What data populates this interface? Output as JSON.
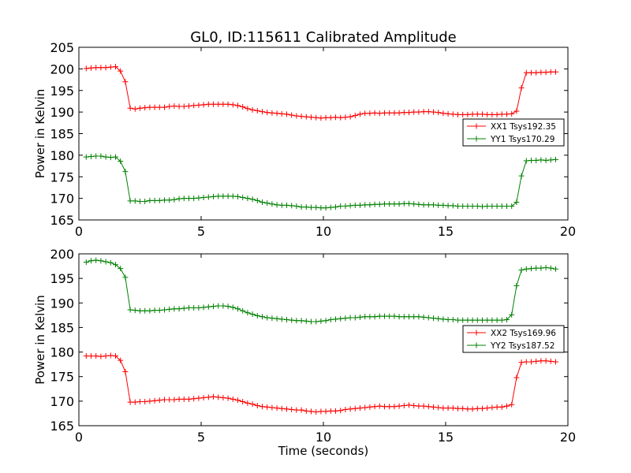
{
  "figure": {
    "title": "GL0, ID:115611 Calibrated Amplitude"
  },
  "chart_data": [
    {
      "type": "line",
      "title": "GL0, ID:115611 Calibrated Amplitude",
      "xlabel": "",
      "ylabel": "Power in Kelvin",
      "xlim": [
        0,
        20
      ],
      "ylim": [
        165,
        205
      ],
      "xticks": [
        "0",
        "5",
        "10",
        "15",
        "20"
      ],
      "yticks": [
        "165",
        "170",
        "175",
        "180",
        "185",
        "190",
        "195",
        "200",
        "205"
      ],
      "grid": false,
      "legend": "center-right",
      "x": [
        0.3,
        0.5,
        0.7,
        0.9,
        1.1,
        1.3,
        1.5,
        1.7,
        1.9,
        2.1,
        2.3,
        2.5,
        2.7,
        2.9,
        3.1,
        3.3,
        3.5,
        3.7,
        3.9,
        4.1,
        4.3,
        4.5,
        4.7,
        4.9,
        5.1,
        5.3,
        5.5,
        5.7,
        5.9,
        6.1,
        6.3,
        6.5,
        6.7,
        6.9,
        7.1,
        7.3,
        7.5,
        7.7,
        7.9,
        8.1,
        8.3,
        8.5,
        8.7,
        8.9,
        9.1,
        9.3,
        9.5,
        9.7,
        9.9,
        10.1,
        10.3,
        10.5,
        10.7,
        10.9,
        11.1,
        11.3,
        11.5,
        11.7,
        11.9,
        12.1,
        12.3,
        12.5,
        12.7,
        12.9,
        13.1,
        13.3,
        13.5,
        13.7,
        13.9,
        14.1,
        14.3,
        14.5,
        14.7,
        14.9,
        15.1,
        15.3,
        15.5,
        15.7,
        15.9,
        16.1,
        16.3,
        16.5,
        16.7,
        16.9,
        17.1,
        17.3,
        17.5,
        17.7,
        17.9,
        18.1,
        18.3,
        18.5,
        18.7,
        18.9,
        19.1,
        19.3,
        19.5
      ],
      "series": [
        {
          "name": "XX1 Tsys192.35",
          "color": "#ff0000",
          "values": [
            200.1,
            200.2,
            200.3,
            200.3,
            200.3,
            200.4,
            200.5,
            199.5,
            197.0,
            190.9,
            190.7,
            190.9,
            191.0,
            191.1,
            191.1,
            191.1,
            191.1,
            191.3,
            191.4,
            191.3,
            191.3,
            191.4,
            191.5,
            191.6,
            191.7,
            191.8,
            191.8,
            191.8,
            191.8,
            191.8,
            191.7,
            191.5,
            191.2,
            190.8,
            190.5,
            190.3,
            190.1,
            189.9,
            189.8,
            189.7,
            189.6,
            189.5,
            189.3,
            189.1,
            189.0,
            188.9,
            188.8,
            188.7,
            188.6,
            188.7,
            188.7,
            188.8,
            188.7,
            188.8,
            188.9,
            189.2,
            189.5,
            189.7,
            189.7,
            189.8,
            189.7,
            189.8,
            189.8,
            189.8,
            189.8,
            189.9,
            189.9,
            190.0,
            190.0,
            190.1,
            190.1,
            190.0,
            189.9,
            189.7,
            189.6,
            189.5,
            189.4,
            189.4,
            189.4,
            189.5,
            189.5,
            189.5,
            189.4,
            189.4,
            189.4,
            189.5,
            189.5,
            189.6,
            190.2,
            195.6,
            199.1,
            199.1,
            199.1,
            199.2,
            199.2,
            199.3,
            199.3
          ]
        },
        {
          "name": "YY1 Tsys170.29",
          "color": "#008000",
          "values": [
            179.6,
            179.7,
            179.8,
            179.8,
            179.6,
            179.5,
            179.6,
            178.6,
            176.2,
            169.4,
            169.4,
            169.3,
            169.3,
            169.5,
            169.5,
            169.5,
            169.6,
            169.6,
            169.7,
            169.9,
            170.0,
            170.0,
            170.0,
            170.1,
            170.2,
            170.3,
            170.4,
            170.5,
            170.5,
            170.5,
            170.5,
            170.4,
            170.2,
            170.0,
            169.8,
            169.5,
            169.1,
            168.9,
            168.7,
            168.5,
            168.4,
            168.4,
            168.3,
            168.2,
            168.0,
            168.0,
            167.9,
            167.9,
            167.8,
            167.8,
            167.9,
            168.0,
            168.2,
            168.2,
            168.3,
            168.4,
            168.4,
            168.5,
            168.5,
            168.6,
            168.6,
            168.7,
            168.7,
            168.7,
            168.7,
            168.8,
            168.8,
            168.7,
            168.6,
            168.5,
            168.5,
            168.5,
            168.4,
            168.4,
            168.3,
            168.3,
            168.2,
            168.2,
            168.2,
            168.2,
            168.2,
            168.1,
            168.2,
            168.2,
            168.2,
            168.2,
            168.2,
            168.2,
            169.1,
            175.2,
            178.7,
            178.8,
            178.8,
            178.9,
            178.8,
            178.9,
            179.0
          ]
        }
      ]
    },
    {
      "type": "line",
      "title": "",
      "xlabel": "Time (seconds)",
      "ylabel": "Power in Kelvin",
      "xlim": [
        0,
        20
      ],
      "ylim": [
        165,
        200
      ],
      "xticks": [
        "0",
        "5",
        "10",
        "15",
        "20"
      ],
      "yticks": [
        "165",
        "170",
        "175",
        "180",
        "185",
        "190",
        "195",
        "200"
      ],
      "grid": false,
      "legend": "center-right",
      "x": [
        0.3,
        0.5,
        0.7,
        0.9,
        1.1,
        1.3,
        1.5,
        1.7,
        1.9,
        2.1,
        2.3,
        2.5,
        2.7,
        2.9,
        3.1,
        3.3,
        3.5,
        3.7,
        3.9,
        4.1,
        4.3,
        4.5,
        4.7,
        4.9,
        5.1,
        5.3,
        5.5,
        5.7,
        5.9,
        6.1,
        6.3,
        6.5,
        6.7,
        6.9,
        7.1,
        7.3,
        7.5,
        7.7,
        7.9,
        8.1,
        8.3,
        8.5,
        8.7,
        8.9,
        9.1,
        9.3,
        9.5,
        9.7,
        9.9,
        10.1,
        10.3,
        10.5,
        10.7,
        10.9,
        11.1,
        11.3,
        11.5,
        11.7,
        11.9,
        12.1,
        12.3,
        12.5,
        12.7,
        12.9,
        13.1,
        13.3,
        13.5,
        13.7,
        13.9,
        14.1,
        14.3,
        14.5,
        14.7,
        14.9,
        15.1,
        15.3,
        15.5,
        15.7,
        15.9,
        16.1,
        16.3,
        16.5,
        16.7,
        16.9,
        17.1,
        17.3,
        17.5,
        17.7,
        17.9,
        18.1,
        18.3,
        18.5,
        18.7,
        18.9,
        19.1,
        19.3,
        19.5
      ],
      "series": [
        {
          "name": "XX2 Tsys169.96",
          "color": "#ff0000",
          "values": [
            179.2,
            179.2,
            179.2,
            179.1,
            179.2,
            179.3,
            179.2,
            178.3,
            176.0,
            169.8,
            169.8,
            169.9,
            169.9,
            170.0,
            170.1,
            170.2,
            170.3,
            170.3,
            170.3,
            170.4,
            170.4,
            170.4,
            170.5,
            170.6,
            170.7,
            170.8,
            170.9,
            170.8,
            170.7,
            170.6,
            170.4,
            170.2,
            169.9,
            169.6,
            169.4,
            169.1,
            168.9,
            168.8,
            168.7,
            168.6,
            168.5,
            168.4,
            168.3,
            168.2,
            168.2,
            168.0,
            167.9,
            167.8,
            167.9,
            167.9,
            168.0,
            168.0,
            168.1,
            168.3,
            168.4,
            168.5,
            168.6,
            168.7,
            168.8,
            168.9,
            169.0,
            168.9,
            168.9,
            168.9,
            169.0,
            169.1,
            169.2,
            169.1,
            169.0,
            169.0,
            168.9,
            168.8,
            168.7,
            168.6,
            168.6,
            168.6,
            168.5,
            168.5,
            168.4,
            168.4,
            168.5,
            168.5,
            168.6,
            168.7,
            168.8,
            168.8,
            169.0,
            169.3,
            174.8,
            177.9,
            178.0,
            178.0,
            178.1,
            178.2,
            178.2,
            178.1,
            178.0
          ]
        },
        {
          "name": "YY2 Tsys187.52",
          "color": "#008000",
          "values": [
            198.3,
            198.6,
            198.7,
            198.6,
            198.4,
            198.2,
            197.8,
            197.0,
            195.2,
            188.6,
            188.5,
            188.4,
            188.4,
            188.4,
            188.5,
            188.5,
            188.6,
            188.7,
            188.8,
            188.8,
            188.9,
            189.0,
            189.0,
            189.0,
            189.1,
            189.2,
            189.3,
            189.4,
            189.4,
            189.3,
            189.1,
            188.8,
            188.4,
            188.0,
            187.7,
            187.4,
            187.2,
            187.0,
            186.9,
            186.8,
            186.7,
            186.6,
            186.5,
            186.4,
            186.4,
            186.3,
            186.2,
            186.2,
            186.3,
            186.4,
            186.6,
            186.7,
            186.8,
            186.9,
            187.0,
            187.0,
            187.1,
            187.2,
            187.2,
            187.2,
            187.3,
            187.3,
            187.3,
            187.3,
            187.2,
            187.2,
            187.2,
            187.2,
            187.2,
            187.1,
            187.0,
            186.9,
            186.8,
            186.7,
            186.6,
            186.6,
            186.5,
            186.5,
            186.5,
            186.5,
            186.5,
            186.5,
            186.5,
            186.5,
            186.5,
            186.5,
            186.6,
            187.6,
            193.5,
            196.7,
            196.9,
            197.0,
            197.1,
            197.1,
            197.2,
            197.1,
            196.9
          ]
        }
      ]
    }
  ]
}
